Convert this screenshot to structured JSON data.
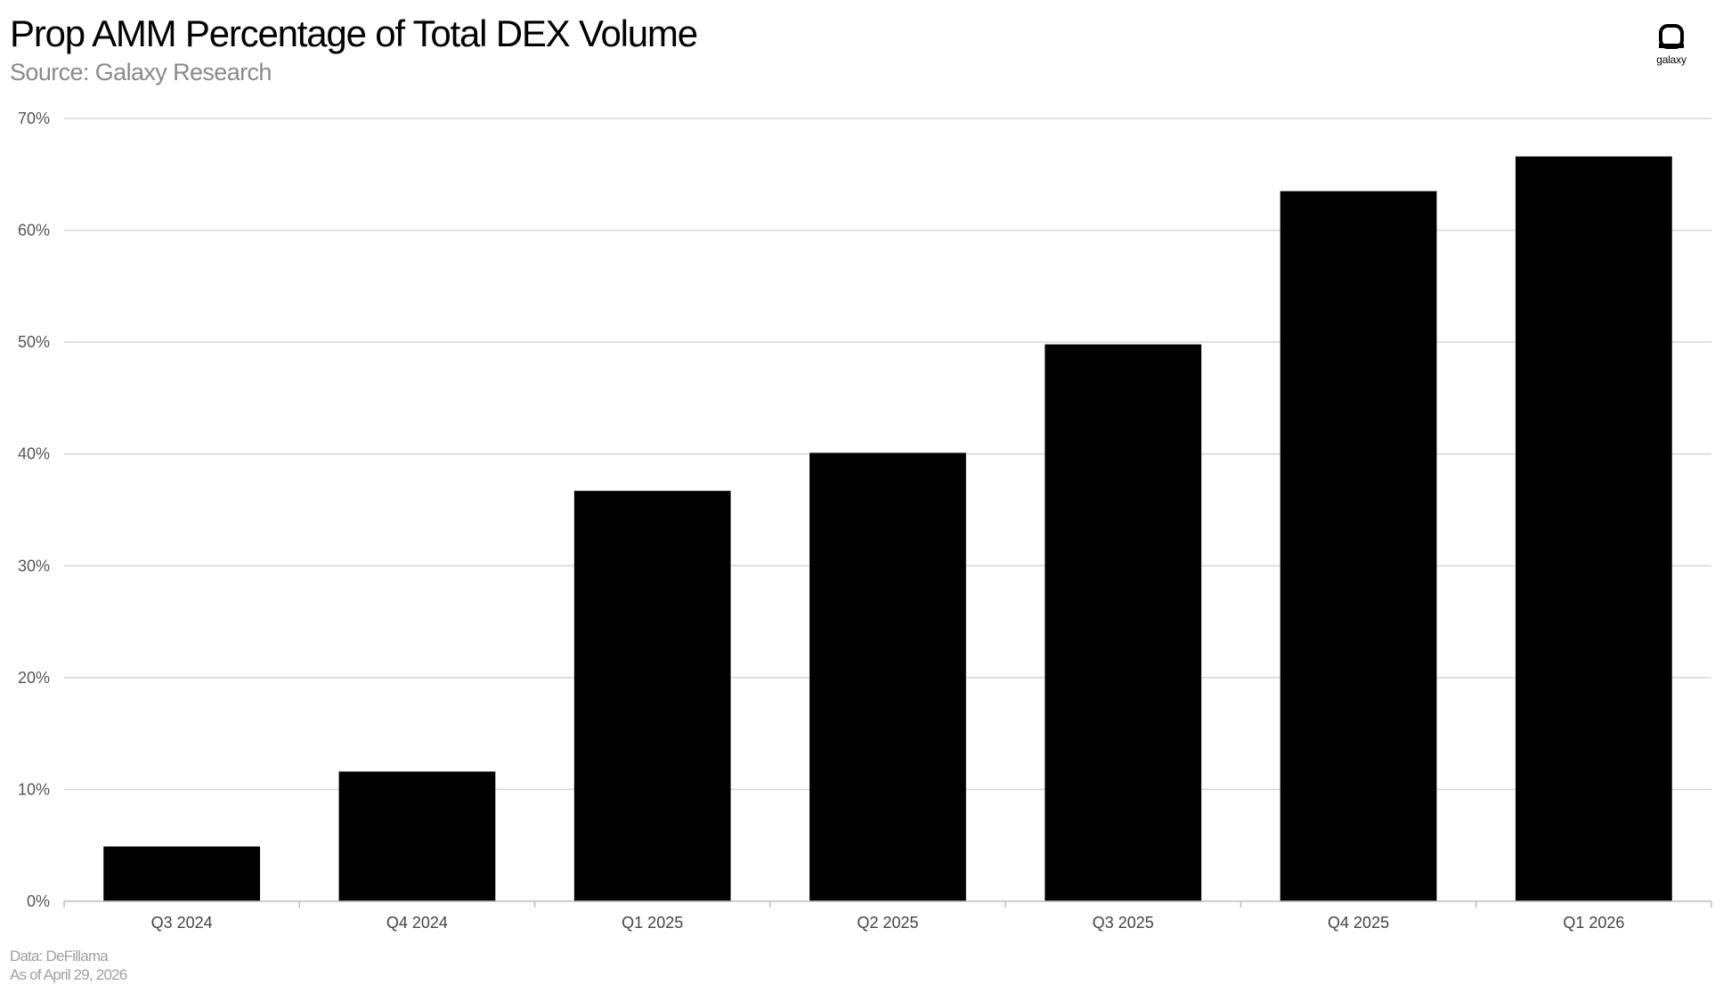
{
  "header": {
    "title": "Prop AMM Percentage of Total DEX Volume",
    "subtitle": "Source: Galaxy Research"
  },
  "logo": {
    "text": "galaxy",
    "icon": "galaxy-logo-icon"
  },
  "footer": {
    "data_source": "Data: DeFillama",
    "as_of": "As of April 29, 2026"
  },
  "colors": {
    "bar": "#000000",
    "grid": "#d6d6d6",
    "axis": "#bdbdbd"
  },
  "chart_data": {
    "type": "bar",
    "categories": [
      "Q3 2024",
      "Q4 2024",
      "Q1 2025",
      "Q2 2025",
      "Q3 2025",
      "Q4 2025",
      "Q1 2026"
    ],
    "values": [
      4.9,
      11.6,
      36.7,
      40.1,
      49.8,
      63.5,
      66.6
    ],
    "value_unit": "%",
    "ylim": [
      0,
      70
    ],
    "yticks": [
      0,
      10,
      20,
      30,
      40,
      50,
      60,
      70
    ],
    "ytick_labels": [
      "0%",
      "10%",
      "20%",
      "30%",
      "40%",
      "50%",
      "60%",
      "70%"
    ],
    "grid": true,
    "legend": "none"
  }
}
